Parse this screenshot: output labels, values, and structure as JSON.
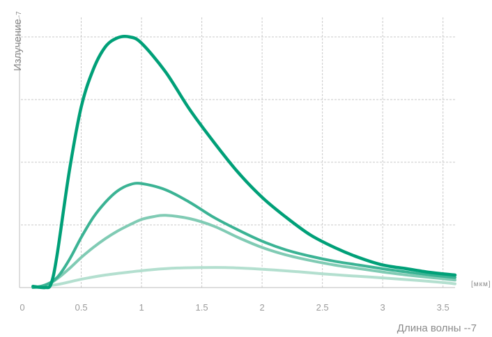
{
  "chart_data": {
    "type": "line",
    "title": "",
    "ylabel": "Излучение",
    "ylabel_unit": "-7",
    "xlabel": "Длина волны --7",
    "x_units": "[мкм]",
    "xlim": [
      0,
      3.6
    ],
    "ylim": [
      0,
      10
    ],
    "x_ticks": [
      "0",
      "0.5",
      "1",
      "1.5",
      "2",
      "2.5",
      "3",
      "3.5"
    ],
    "grid": true,
    "colors": [
      "#00a078",
      "#3bb394",
      "#80cbb4",
      "#b3dfcf"
    ],
    "series": [
      {
        "x": [
          0.1,
          0.2,
          0.25,
          0.3,
          0.4,
          0.5,
          0.6,
          0.7,
          0.8,
          0.9,
          1.0,
          1.2,
          1.4,
          1.6,
          1.8,
          2.0,
          2.2,
          2.4,
          2.6,
          2.8,
          3.0,
          3.2,
          3.4,
          3.6
        ],
        "y": [
          0.05,
          0.0,
          0.15,
          1.3,
          4.6,
          7.2,
          8.7,
          9.6,
          9.96,
          10.0,
          9.75,
          8.6,
          7.1,
          5.8,
          4.6,
          3.6,
          2.8,
          2.1,
          1.6,
          1.2,
          0.9,
          0.75,
          0.6,
          0.5
        ]
      },
      {
        "x": [
          0.1,
          0.2,
          0.3,
          0.4,
          0.5,
          0.6,
          0.7,
          0.8,
          0.9,
          1.0,
          1.2,
          1.4,
          1.6,
          1.8,
          2.0,
          2.2,
          2.4,
          2.6,
          2.8,
          3.0,
          3.2,
          3.4,
          3.6
        ],
        "y": [
          0.0,
          0.1,
          0.4,
          1.1,
          2.0,
          2.8,
          3.4,
          3.85,
          4.1,
          4.15,
          3.9,
          3.4,
          2.8,
          2.3,
          1.85,
          1.5,
          1.25,
          1.05,
          0.9,
          0.75,
          0.62,
          0.5,
          0.4
        ]
      },
      {
        "x": [
          0.1,
          0.2,
          0.3,
          0.4,
          0.5,
          0.6,
          0.7,
          0.8,
          0.9,
          1.0,
          1.1,
          1.2,
          1.4,
          1.6,
          1.8,
          2.0,
          2.2,
          2.4,
          2.6,
          2.8,
          3.0,
          3.2,
          3.4,
          3.6
        ],
        "y": [
          0.0,
          0.05,
          0.35,
          0.75,
          1.2,
          1.6,
          1.95,
          2.25,
          2.5,
          2.72,
          2.83,
          2.88,
          2.75,
          2.45,
          2.0,
          1.6,
          1.3,
          1.08,
          0.9,
          0.76,
          0.62,
          0.5,
          0.4,
          0.3
        ]
      },
      {
        "x": [
          0.1,
          0.3,
          0.5,
          0.7,
          0.9,
          1.1,
          1.3,
          1.5,
          1.7,
          1.9,
          2.1,
          2.3,
          2.5,
          2.7,
          2.9,
          3.1,
          3.3,
          3.5,
          3.6
        ],
        "y": [
          0.0,
          0.12,
          0.33,
          0.5,
          0.62,
          0.72,
          0.78,
          0.8,
          0.8,
          0.76,
          0.7,
          0.63,
          0.55,
          0.48,
          0.42,
          0.35,
          0.28,
          0.2,
          0.15
        ]
      }
    ]
  }
}
